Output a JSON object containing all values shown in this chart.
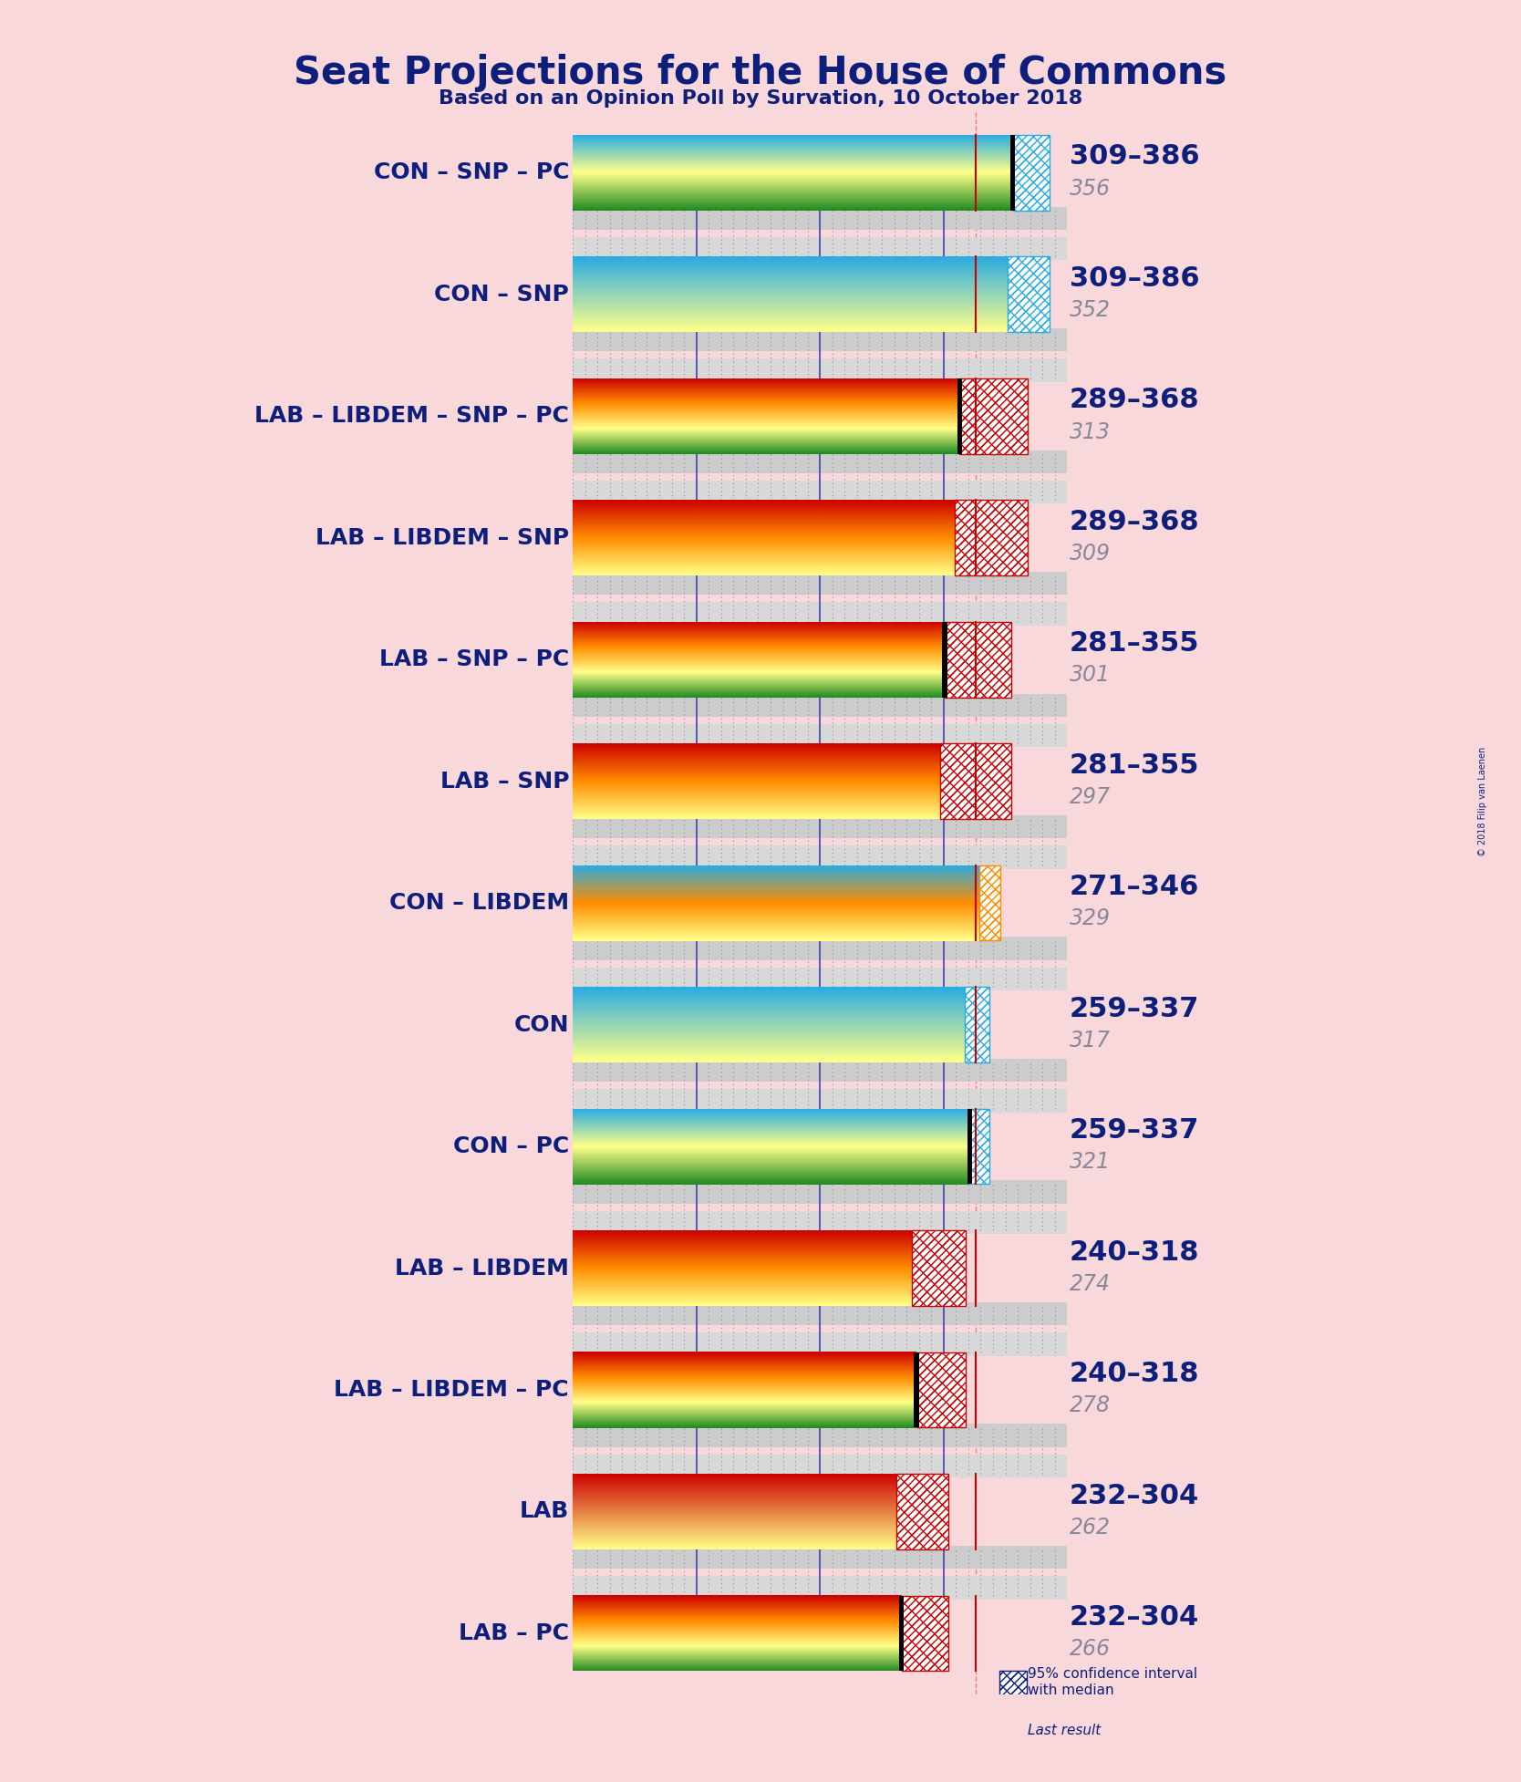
{
  "title": "Seat Projections for the House of Commons",
  "subtitle": "Based on an Opinion Poll by Survation, 10 October 2018",
  "copyright": "© 2018 Filip van Laenen",
  "background_color": "#F9D8DC",
  "title_color": "#0D1F7A",
  "bar_height": 0.62,
  "xlim_left": 0,
  "xlim_right": 400,
  "majority_line": 326,
  "grid_step": 10,
  "vertical_lines": [
    100,
    200,
    300
  ],
  "coalitions": [
    {
      "name": "CON – SNP – PC",
      "range": "309–386",
      "median": 356,
      "ci_low": 309,
      "ci_high": 386,
      "bar_colors": [
        "#29ABE2",
        "#FFFF88",
        "#228B22"
      ],
      "hatch_color": "#29ABE2",
      "last_result": 356
    },
    {
      "name": "CON – SNP",
      "range": "309–386",
      "median": 352,
      "ci_low": 309,
      "ci_high": 386,
      "bar_colors": [
        "#29ABE2",
        "#FFFF88"
      ],
      "hatch_color": "#29ABE2",
      "last_result": null
    },
    {
      "name": "LAB – LIBDEM – SNP – PC",
      "range": "289–368",
      "median": 313,
      "ci_low": 289,
      "ci_high": 368,
      "bar_colors": [
        "#CC0000",
        "#FF8C00",
        "#FFFF88",
        "#228B22"
      ],
      "hatch_color": "#CC0000",
      "last_result": 313
    },
    {
      "name": "LAB – LIBDEM – SNP",
      "range": "289–368",
      "median": 309,
      "ci_low": 289,
      "ci_high": 368,
      "bar_colors": [
        "#CC0000",
        "#FF8C00",
        "#FFFF88"
      ],
      "hatch_color": "#CC0000",
      "last_result": null
    },
    {
      "name": "LAB – SNP – PC",
      "range": "281–355",
      "median": 301,
      "ci_low": 281,
      "ci_high": 355,
      "bar_colors": [
        "#CC0000",
        "#FF8C00",
        "#FFFF88",
        "#228B22"
      ],
      "hatch_color": "#CC0000",
      "last_result": 301
    },
    {
      "name": "LAB – SNP",
      "range": "281–355",
      "median": 297,
      "ci_low": 281,
      "ci_high": 355,
      "bar_colors": [
        "#CC0000",
        "#FF8C00",
        "#FFFF88"
      ],
      "hatch_color": "#CC0000",
      "last_result": null
    },
    {
      "name": "CON – LIBDEM",
      "range": "271–346",
      "median": 329,
      "ci_low": 271,
      "ci_high": 346,
      "bar_colors": [
        "#29ABE2",
        "#FF8C00",
        "#FFFF88"
      ],
      "hatch_color": "#FF8C00",
      "last_result": null
    },
    {
      "name": "CON",
      "range": "259–337",
      "median": 317,
      "ci_low": 259,
      "ci_high": 337,
      "bar_colors": [
        "#29ABE2",
        "#FFFF88"
      ],
      "hatch_color": "#29ABE2",
      "last_result": null
    },
    {
      "name": "CON – PC",
      "range": "259–337",
      "median": 321,
      "ci_low": 259,
      "ci_high": 337,
      "bar_colors": [
        "#29ABE2",
        "#FFFF88",
        "#228B22"
      ],
      "hatch_color": "#29ABE2",
      "last_result": 321
    },
    {
      "name": "LAB – LIBDEM",
      "range": "240–318",
      "median": 274,
      "ci_low": 240,
      "ci_high": 318,
      "bar_colors": [
        "#CC0000",
        "#FF8C00",
        "#FFFF88"
      ],
      "hatch_color": "#CC0000",
      "last_result": null
    },
    {
      "name": "LAB – LIBDEM – PC",
      "range": "240–318",
      "median": 278,
      "ci_low": 240,
      "ci_high": 318,
      "bar_colors": [
        "#CC0000",
        "#FF8C00",
        "#FFFF88",
        "#228B22"
      ],
      "hatch_color": "#CC0000",
      "last_result": 278
    },
    {
      "name": "LAB",
      "range": "232–304",
      "median": 262,
      "ci_low": 232,
      "ci_high": 304,
      "bar_colors": [
        "#CC0000",
        "#FFFF88"
      ],
      "hatch_color": "#CC0000",
      "last_result": null
    },
    {
      "name": "LAB – PC",
      "range": "232–304",
      "median": 266,
      "ci_low": 232,
      "ci_high": 304,
      "bar_colors": [
        "#CC0000",
        "#FF8C00",
        "#FFFF88",
        "#228B22"
      ],
      "hatch_color": "#CC0000",
      "last_result": 266
    }
  ]
}
